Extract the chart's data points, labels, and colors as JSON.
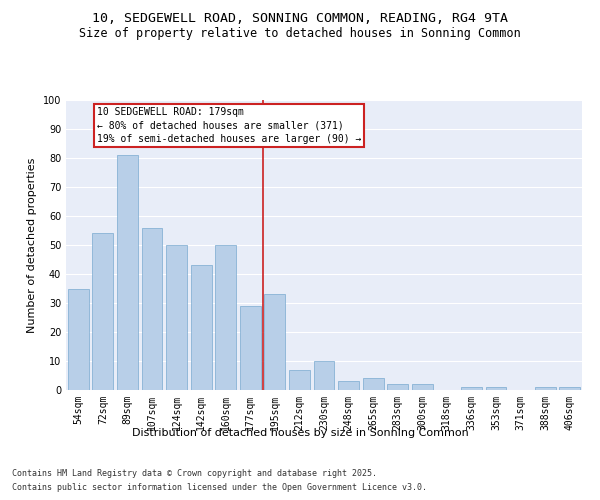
{
  "title_line1": "10, SEDGEWELL ROAD, SONNING COMMON, READING, RG4 9TA",
  "title_line2": "Size of property relative to detached houses in Sonning Common",
  "xlabel": "Distribution of detached houses by size in Sonning Common",
  "ylabel": "Number of detached properties",
  "categories": [
    "54sqm",
    "72sqm",
    "89sqm",
    "107sqm",
    "124sqm",
    "142sqm",
    "160sqm",
    "177sqm",
    "195sqm",
    "212sqm",
    "230sqm",
    "248sqm",
    "265sqm",
    "283sqm",
    "300sqm",
    "318sqm",
    "336sqm",
    "353sqm",
    "371sqm",
    "388sqm",
    "406sqm"
  ],
  "values": [
    35,
    54,
    81,
    56,
    50,
    43,
    50,
    29,
    33,
    7,
    10,
    3,
    4,
    2,
    2,
    0,
    1,
    1,
    0,
    1,
    1
  ],
  "bar_color": "#b8cfe8",
  "bar_edge_color": "#7aaad0",
  "background_color": "#e8edf8",
  "grid_color": "#ffffff",
  "vline_color": "#cc2222",
  "vline_x_index": 7,
  "annotation_text": "10 SEDGEWELL ROAD: 179sqm\n← 80% of detached houses are smaller (371)\n19% of semi-detached houses are larger (90) →",
  "annotation_box_color": "#cc2222",
  "annotation_text_color": "#000000",
  "ylim": [
    0,
    100
  ],
  "yticks": [
    0,
    10,
    20,
    30,
    40,
    50,
    60,
    70,
    80,
    90,
    100
  ],
  "footnote_line1": "Contains HM Land Registry data © Crown copyright and database right 2025.",
  "footnote_line2": "Contains public sector information licensed under the Open Government Licence v3.0.",
  "title_fontsize": 9.5,
  "subtitle_fontsize": 8.5,
  "axis_label_fontsize": 8,
  "tick_fontsize": 7,
  "annotation_fontsize": 7,
  "footnote_fontsize": 6
}
